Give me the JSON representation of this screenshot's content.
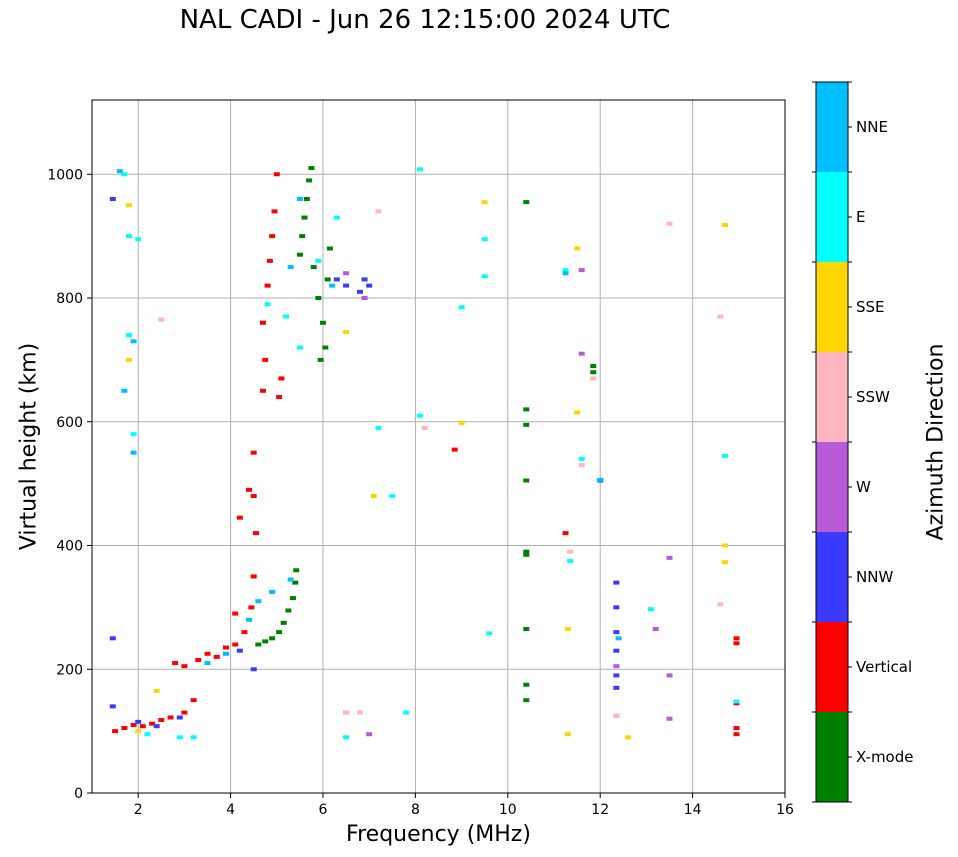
{
  "chart_data": {
    "type": "scatter",
    "title": "NAL CADI - Jun 26 12:15:00 2024 UTC",
    "xlabel": "Frequency (MHz)",
    "ylabel": "Virtual height (km)",
    "xlim": [
      1,
      16
    ],
    "ylim": [
      0,
      1120
    ],
    "xticks": [
      2,
      4,
      6,
      8,
      10,
      12,
      14,
      16
    ],
    "yticks": [
      0,
      200,
      400,
      600,
      800,
      1000
    ],
    "grid": true,
    "colorbar": {
      "label": "Azimuth Direction",
      "categories": [
        "X-mode",
        "Vertical",
        "NNW",
        "W",
        "SSW",
        "SSE",
        "E",
        "NNE"
      ],
      "colors": [
        "#008000",
        "#ff0000",
        "#3a3aff",
        "#b65ad6",
        "#ffb6c1",
        "#ffd700",
        "#00ffff",
        "#00bfff"
      ]
    },
    "series": [
      {
        "name": "X-mode",
        "points": [
          [
            4.6,
            240
          ],
          [
            4.75,
            245
          ],
          [
            4.9,
            250
          ],
          [
            5.05,
            260
          ],
          [
            5.15,
            275
          ],
          [
            5.25,
            295
          ],
          [
            5.35,
            315
          ],
          [
            5.4,
            340
          ],
          [
            5.42,
            360
          ],
          [
            5.5,
            870
          ],
          [
            5.55,
            900
          ],
          [
            5.6,
            930
          ],
          [
            5.65,
            960
          ],
          [
            5.7,
            990
          ],
          [
            5.75,
            1010
          ],
          [
            5.8,
            850
          ],
          [
            5.9,
            800
          ],
          [
            6.0,
            760
          ],
          [
            6.05,
            720
          ],
          [
            5.95,
            700
          ],
          [
            6.1,
            830
          ],
          [
            6.15,
            880
          ],
          [
            10.4,
            150
          ],
          [
            10.4,
            175
          ],
          [
            10.4,
            265
          ],
          [
            10.4,
            385
          ],
          [
            10.4,
            390
          ],
          [
            10.4,
            505
          ],
          [
            10.4,
            595
          ],
          [
            10.4,
            620
          ],
          [
            10.4,
            955
          ],
          [
            11.85,
            690
          ],
          [
            11.85,
            680
          ]
        ]
      },
      {
        "name": "Vertical",
        "points": [
          [
            1.5,
            100
          ],
          [
            1.7,
            105
          ],
          [
            1.9,
            110
          ],
          [
            2.1,
            108
          ],
          [
            2.3,
            112
          ],
          [
            2.5,
            118
          ],
          [
            2.7,
            122
          ],
          [
            3.0,
            130
          ],
          [
            3.2,
            150
          ],
          [
            2.8,
            210
          ],
          [
            3.0,
            205
          ],
          [
            3.3,
            215
          ],
          [
            3.5,
            225
          ],
          [
            3.7,
            220
          ],
          [
            3.9,
            235
          ],
          [
            4.1,
            240
          ],
          [
            4.3,
            260
          ],
          [
            4.45,
            300
          ],
          [
            4.5,
            350
          ],
          [
            4.55,
            420
          ],
          [
            4.5,
            480
          ],
          [
            4.5,
            550
          ],
          [
            4.4,
            490
          ],
          [
            4.2,
            445
          ],
          [
            4.1,
            290
          ],
          [
            4.7,
            650
          ],
          [
            4.75,
            700
          ],
          [
            4.7,
            760
          ],
          [
            4.8,
            820
          ],
          [
            4.85,
            860
          ],
          [
            4.9,
            900
          ],
          [
            4.95,
            940
          ],
          [
            5.0,
            1000
          ],
          [
            5.05,
            640
          ],
          [
            5.1,
            670
          ],
          [
            8.85,
            555
          ],
          [
            11.25,
            420
          ],
          [
            14.95,
            250
          ],
          [
            14.95,
            242
          ],
          [
            14.95,
            145
          ],
          [
            14.95,
            105
          ],
          [
            14.95,
            95
          ],
          [
            6.5,
            130
          ]
        ]
      },
      {
        "name": "NNW",
        "points": [
          [
            1.45,
            960
          ],
          [
            1.45,
            250
          ],
          [
            1.45,
            140
          ],
          [
            2.0,
            115
          ],
          [
            2.4,
            108
          ],
          [
            2.9,
            122
          ],
          [
            4.2,
            230
          ],
          [
            4.5,
            200
          ],
          [
            6.3,
            830
          ],
          [
            6.5,
            820
          ],
          [
            6.8,
            810
          ],
          [
            6.9,
            830
          ],
          [
            7.0,
            820
          ],
          [
            12.35,
            170
          ],
          [
            12.35,
            190
          ],
          [
            12.35,
            230
          ],
          [
            12.35,
            260
          ],
          [
            12.35,
            300
          ],
          [
            12.35,
            340
          ],
          [
            12.0,
            505
          ]
        ]
      },
      {
        "name": "W",
        "points": [
          [
            6.5,
            840
          ],
          [
            6.9,
            800
          ],
          [
            7.0,
            95
          ],
          [
            11.6,
            710
          ],
          [
            12.35,
            205
          ],
          [
            12.35,
            125
          ],
          [
            13.5,
            380
          ],
          [
            13.5,
            190
          ],
          [
            13.5,
            120
          ],
          [
            13.2,
            265
          ],
          [
            11.6,
            845
          ]
        ]
      },
      {
        "name": "SSW",
        "points": [
          [
            2.5,
            765
          ],
          [
            7.2,
            940
          ],
          [
            8.2,
            590
          ],
          [
            11.6,
            530
          ],
          [
            11.35,
            390
          ],
          [
            13.5,
            920
          ],
          [
            14.6,
            770
          ],
          [
            14.6,
            305
          ],
          [
            11.85,
            670
          ],
          [
            12.35,
            125
          ],
          [
            6.5,
            130
          ],
          [
            6.8,
            130
          ]
        ]
      },
      {
        "name": "SSE",
        "points": [
          [
            1.8,
            950
          ],
          [
            1.8,
            700
          ],
          [
            2.0,
            100
          ],
          [
            2.4,
            165
          ],
          [
            6.5,
            745
          ],
          [
            7.1,
            480
          ],
          [
            9.5,
            955
          ],
          [
            9.0,
            598
          ],
          [
            11.3,
            95
          ],
          [
            11.5,
            880
          ],
          [
            11.5,
            615
          ],
          [
            11.3,
            265
          ],
          [
            12.6,
            90
          ],
          [
            14.7,
            918
          ],
          [
            14.7,
            400
          ],
          [
            14.7,
            373
          ]
        ]
      },
      {
        "name": "E",
        "points": [
          [
            1.7,
            1000
          ],
          [
            1.8,
            900
          ],
          [
            2.0,
            895
          ],
          [
            1.8,
            740
          ],
          [
            1.9,
            580
          ],
          [
            2.2,
            95
          ],
          [
            2.9,
            90
          ],
          [
            3.2,
            90
          ],
          [
            4.8,
            790
          ],
          [
            5.2,
            770
          ],
          [
            5.5,
            720
          ],
          [
            5.9,
            860
          ],
          [
            6.3,
            930
          ],
          [
            6.5,
            90
          ],
          [
            7.2,
            590
          ],
          [
            7.5,
            480
          ],
          [
            7.8,
            130
          ],
          [
            8.1,
            610
          ],
          [
            8.1,
            1008
          ],
          [
            9.5,
            895
          ],
          [
            9.5,
            835
          ],
          [
            9.0,
            785
          ],
          [
            9.6,
            258
          ],
          [
            11.25,
            845
          ],
          [
            11.35,
            375
          ],
          [
            11.6,
            540
          ],
          [
            13.1,
            297
          ],
          [
            14.7,
            545
          ],
          [
            14.95,
            148
          ]
        ]
      },
      {
        "name": "NNE",
        "points": [
          [
            1.6,
            1005
          ],
          [
            1.7,
            650
          ],
          [
            1.9,
            730
          ],
          [
            1.9,
            550
          ],
          [
            3.5,
            210
          ],
          [
            3.9,
            225
          ],
          [
            4.4,
            280
          ],
          [
            4.6,
            310
          ],
          [
            4.9,
            325
          ],
          [
            5.3,
            345
          ],
          [
            5.3,
            850
          ],
          [
            5.5,
            960
          ],
          [
            6.2,
            820
          ],
          [
            11.25,
            840
          ],
          [
            12.4,
            250
          ],
          [
            12.0,
            506
          ]
        ]
      }
    ]
  }
}
